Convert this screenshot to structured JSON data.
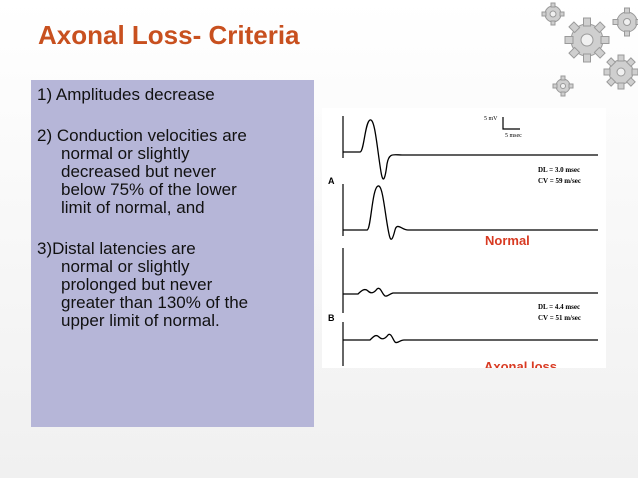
{
  "title": "Axonal Loss- Criteria",
  "criteria": [
    {
      "lead": "1) Amplitudes decrease",
      "lines": []
    },
    {
      "lead": "2) Conduction velocities are",
      "lines": [
        "normal or slightly",
        "decreased but never",
        "below 75% of the lower",
        "limit of normal, and"
      ]
    },
    {
      "lead": "3)Distal latencies are",
      "lines": [
        "normal or slightly",
        "prolonged but never",
        "greater than 130% of the",
        "upper limit of normal."
      ]
    }
  ],
  "figure": {
    "scale_amplitude": "5 mV",
    "scale_time": "5 msec",
    "panel_a_label": "A",
    "panel_b_label": "B",
    "panel_a_dl": "DL = 3.0 msec",
    "panel_a_cv": "CV = 59 m/sec",
    "panel_b_dl": "DL = 4.4 msec",
    "panel_b_cv": "CV = 51 m/sec",
    "normal_label": "Normal",
    "axonal_loss_label": "Axonal loss",
    "label_color": "#d83a22"
  },
  "colors": {
    "title": "#c8501f",
    "panel_background": "#b6b6d8"
  },
  "decoration": "gears-icon"
}
